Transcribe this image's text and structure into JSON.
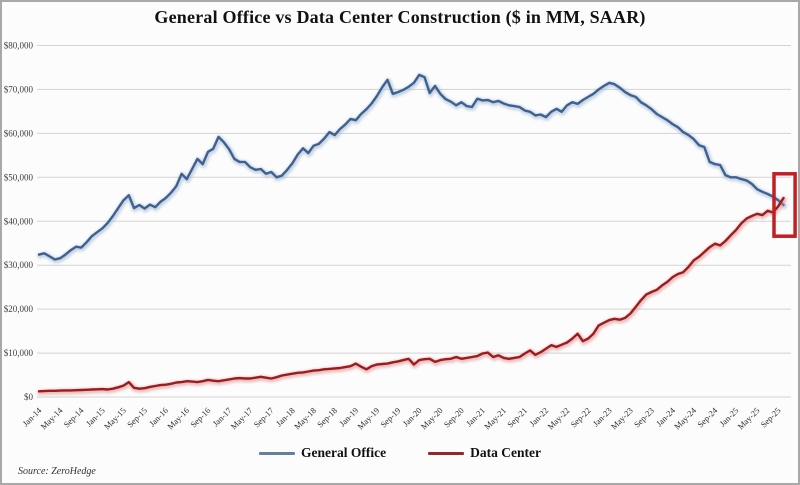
{
  "title": "General Office vs Data Center Construction ($ in MM, SAAR)",
  "source": "Source: ZeroHedge",
  "legend": [
    {
      "label": "General Office",
      "color": "#64809f"
    },
    {
      "label": "Data Center",
      "color": "#8f2b2d"
    }
  ],
  "chart_data": {
    "type": "line",
    "title": "General Office vs Data Center Construction ($ in MM, SAAR)",
    "xlabel": "",
    "ylabel": "$ in MM, SAAR",
    "ylim": [
      0,
      80000
    ],
    "grid": "horizontal",
    "legend_position": "bottom-center",
    "x_frequency": "monthly, Jan-2014 through Oct-2025",
    "x_tick_step": 4,
    "x_ticks": [
      "Jan-14",
      "May-14",
      "Sep-14",
      "Jan-15",
      "May-15",
      "Sep-15",
      "Jan-16",
      "May-16",
      "Sep-16",
      "Jan-17",
      "May-17",
      "Sep-17",
      "Jan-18",
      "May-18",
      "Sep-18",
      "Jan-19",
      "May-19",
      "Sep-19",
      "Jan-20",
      "May-20",
      "Sep-20",
      "Jan-21",
      "May-21",
      "Sep-21",
      "Jan-22",
      "May-22",
      "Sep-22",
      "Jan-23",
      "May-23",
      "Sep-23",
      "Jan-24",
      "May-24",
      "Sep-24",
      "Jan-25",
      "May-25",
      "Sep-25"
    ],
    "y_ticks": [
      {
        "label": "$80,000",
        "value": 80000
      },
      {
        "label": "$70,000",
        "value": 70000
      },
      {
        "label": "$60,000",
        "value": 60000
      },
      {
        "label": "$50,000",
        "value": 50000
      },
      {
        "label": "$40,000",
        "value": 40000
      },
      {
        "label": "$30,000",
        "value": 30000
      },
      {
        "label": "$20,000",
        "value": 20000
      },
      {
        "label": "$10,000",
        "value": 10000
      },
      {
        "label": "$0",
        "value": 0
      }
    ],
    "series": [
      {
        "name": "General Office",
        "color": "#3e618f",
        "halo": "#9db4cf",
        "values": [
          32400,
          32700,
          32000,
          31300,
          31600,
          32400,
          33400,
          34200,
          34000,
          35200,
          36600,
          37500,
          38400,
          39600,
          41200,
          43000,
          44800,
          45900,
          43000,
          43700,
          42900,
          43800,
          43200,
          44400,
          45300,
          46500,
          48000,
          50800,
          49600,
          51900,
          54200,
          53000,
          55800,
          56500,
          59200,
          58000,
          56400,
          54200,
          53500,
          53500,
          52300,
          51700,
          51900,
          50800,
          51200,
          50000,
          50400,
          51700,
          53200,
          55200,
          56600,
          55500,
          57200,
          57600,
          58800,
          60300,
          59600,
          61000,
          62000,
          63300,
          63000,
          64400,
          65500,
          66800,
          68500,
          70500,
          72200,
          69000,
          69400,
          69900,
          70600,
          71500,
          73300,
          72800,
          69200,
          70800,
          69000,
          67800,
          67200,
          66400,
          67100,
          66200,
          66000,
          67900,
          67500,
          67600,
          67100,
          67400,
          66800,
          66400,
          66200,
          66000,
          65200,
          64900,
          64100,
          64300,
          63700,
          64900,
          65600,
          64900,
          66400,
          67100,
          66700,
          67600,
          68300,
          69000,
          70000,
          70800,
          71500,
          71200,
          70400,
          69400,
          68700,
          68300,
          67100,
          66400,
          65500,
          64400,
          63700,
          63000,
          62100,
          61400,
          60300,
          59600,
          58700,
          57300,
          56900,
          53500,
          53000,
          52800,
          50500,
          50000,
          50000,
          49600,
          49300,
          48500,
          47300,
          46700,
          46200,
          45600,
          44800,
          43700
        ]
      },
      {
        "name": "Data Center",
        "color": "#9e1b1e",
        "halo": "#d98f8f",
        "values": [
          1300,
          1350,
          1400,
          1400,
          1450,
          1500,
          1500,
          1550,
          1600,
          1650,
          1700,
          1750,
          1800,
          1700,
          1900,
          2200,
          2600,
          3400,
          2100,
          1900,
          2000,
          2300,
          2500,
          2700,
          2800,
          3000,
          3300,
          3400,
          3600,
          3500,
          3400,
          3600,
          3900,
          3700,
          3600,
          3800,
          4000,
          4200,
          4300,
          4200,
          4200,
          4400,
          4600,
          4400,
          4200,
          4500,
          4900,
          5100,
          5300,
          5500,
          5600,
          5800,
          6000,
          6100,
          6300,
          6400,
          6500,
          6600,
          6800,
          7000,
          7600,
          6900,
          6300,
          7000,
          7400,
          7500,
          7600,
          7900,
          8100,
          8400,
          8700,
          7400,
          8400,
          8600,
          8700,
          8000,
          8400,
          8600,
          8700,
          9100,
          8700,
          8900,
          9100,
          9300,
          9900,
          10100,
          9100,
          9500,
          8900,
          8700,
          8900,
          9100,
          9900,
          10600,
          9600,
          10200,
          11000,
          11800,
          11400,
          11900,
          12400,
          13300,
          14400,
          12700,
          13300,
          14400,
          16300,
          16900,
          17500,
          17800,
          17600,
          18000,
          19000,
          20500,
          22000,
          23300,
          23900,
          24400,
          25400,
          26200,
          27300,
          28000,
          28400,
          29600,
          31100,
          31900,
          33000,
          34100,
          34900,
          34500,
          35500,
          36800,
          38000,
          39500,
          40600,
          41200,
          41700,
          41400,
          42400,
          42000,
          43400,
          45300
        ]
      }
    ],
    "highlight_box": {
      "note": "red rectangle marking where Data Center crosses above General Office at series end",
      "from_index": 139.2,
      "to_index": 143.2,
      "from_value": 36600,
      "to_value": 50800,
      "color": "#c01f25"
    }
  }
}
